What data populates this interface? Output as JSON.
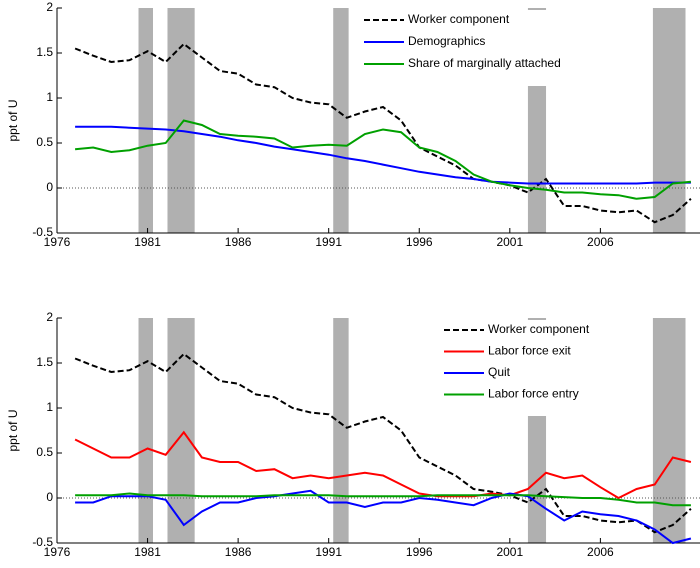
{
  "chart_data": [
    {
      "type": "line",
      "y_label": "ppt of U",
      "xlim": [
        1976,
        2011.5
      ],
      "xticks": [
        1976,
        1981,
        1986,
        1991,
        1996,
        2001,
        2006
      ],
      "ylim": [
        -0.5,
        2
      ],
      "yticks": [
        2,
        1.5,
        1,
        0.5,
        0,
        -0.5
      ],
      "zero_line": true,
      "legend": "upper center",
      "shaded_periods": [
        [
          1980.5,
          1981.3
        ],
        [
          1982.1,
          1983.6
        ],
        [
          1991.25,
          1992.1
        ],
        [
          2002.0,
          2003.0
        ],
        [
          2008.9,
          2010.7
        ]
      ],
      "x": [
        1977,
        1978,
        1979,
        1980,
        1981,
        1982,
        1983,
        1984,
        1985,
        1986,
        1987,
        1988,
        1989,
        1990,
        1991,
        1992,
        1993,
        1994,
        1995,
        1996,
        1997,
        1998,
        1999,
        2000,
        2001,
        2002,
        2003,
        2004,
        2005,
        2006,
        2007,
        2008,
        2009,
        2010,
        2011
      ],
      "series": [
        {
          "name": "Worker component",
          "color": "#000000",
          "style": "dashed",
          "values": [
            1.55,
            1.47,
            1.4,
            1.42,
            1.52,
            1.4,
            1.6,
            1.45,
            1.3,
            1.27,
            1.15,
            1.12,
            1.0,
            0.95,
            0.93,
            0.78,
            0.85,
            0.9,
            0.75,
            0.45,
            0.35,
            0.25,
            0.1,
            0.07,
            0.03,
            -0.05,
            0.1,
            -0.2,
            -0.2,
            -0.25,
            -0.27,
            -0.25,
            -0.38,
            -0.3,
            -0.12
          ]
        },
        {
          "name": "Demographics",
          "color": "#0000ff",
          "style": "solid",
          "values": [
            0.68,
            0.68,
            0.68,
            0.67,
            0.66,
            0.65,
            0.63,
            0.6,
            0.57,
            0.53,
            0.5,
            0.46,
            0.43,
            0.4,
            0.37,
            0.33,
            0.3,
            0.26,
            0.22,
            0.18,
            0.15,
            0.12,
            0.1,
            0.07,
            0.06,
            0.05,
            0.05,
            0.05,
            0.05,
            0.05,
            0.05,
            0.05,
            0.06,
            0.06,
            0.06
          ]
        },
        {
          "name": "Share of marginally attached",
          "color": "#00a000",
          "style": "solid",
          "values": [
            0.43,
            0.45,
            0.4,
            0.42,
            0.47,
            0.5,
            0.75,
            0.7,
            0.6,
            0.58,
            0.57,
            0.55,
            0.45,
            0.47,
            0.48,
            0.47,
            0.6,
            0.65,
            0.62,
            0.45,
            0.4,
            0.3,
            0.15,
            0.07,
            0.03,
            0.0,
            -0.02,
            -0.05,
            -0.05,
            -0.07,
            -0.08,
            -0.12,
            -0.1,
            0.05,
            0.07
          ]
        }
      ]
    },
    {
      "type": "line",
      "y_label": "ppt of U",
      "xlim": [
        1976,
        2011.5
      ],
      "xticks": [
        1976,
        1981,
        1986,
        1991,
        1996,
        2001,
        2006
      ],
      "ylim": [
        -0.5,
        2
      ],
      "yticks": [
        2,
        1.5,
        1,
        0.5,
        0,
        -0.5
      ],
      "zero_line": true,
      "legend": "upper right",
      "shaded_periods": [
        [
          1980.5,
          1981.3
        ],
        [
          1982.1,
          1983.6
        ],
        [
          1991.25,
          1992.1
        ],
        [
          2002.0,
          2003.0
        ],
        [
          2008.9,
          2010.7
        ]
      ],
      "x": [
        1977,
        1978,
        1979,
        1980,
        1981,
        1982,
        1983,
        1984,
        1985,
        1986,
        1987,
        1988,
        1989,
        1990,
        1991,
        1992,
        1993,
        1994,
        1995,
        1996,
        1997,
        1998,
        1999,
        2000,
        2001,
        2002,
        2003,
        2004,
        2005,
        2006,
        2007,
        2008,
        2009,
        2010,
        2011
      ],
      "series": [
        {
          "name": "Worker component",
          "color": "#000000",
          "style": "dashed",
          "values": [
            1.55,
            1.47,
            1.4,
            1.42,
            1.52,
            1.4,
            1.6,
            1.45,
            1.3,
            1.27,
            1.15,
            1.12,
            1.0,
            0.95,
            0.93,
            0.78,
            0.85,
            0.9,
            0.75,
            0.45,
            0.35,
            0.25,
            0.1,
            0.07,
            0.03,
            -0.05,
            0.1,
            -0.2,
            -0.2,
            -0.25,
            -0.27,
            -0.25,
            -0.38,
            -0.3,
            -0.12
          ]
        },
        {
          "name": "Labor force exit",
          "color": "#ff0000",
          "style": "solid",
          "values": [
            0.65,
            0.55,
            0.45,
            0.45,
            0.55,
            0.48,
            0.73,
            0.45,
            0.4,
            0.4,
            0.3,
            0.32,
            0.22,
            0.25,
            0.22,
            0.25,
            0.28,
            0.25,
            0.15,
            0.05,
            0.02,
            0.02,
            0.02,
            0.05,
            0.03,
            0.1,
            0.28,
            0.22,
            0.25,
            0.12,
            0.0,
            0.1,
            0.15,
            0.45,
            0.4
          ]
        },
        {
          "name": "Quit",
          "color": "#0000ff",
          "style": "solid",
          "values": [
            -0.05,
            -0.05,
            0.02,
            0.02,
            0.02,
            -0.02,
            -0.3,
            -0.15,
            -0.05,
            -0.05,
            0.0,
            0.02,
            0.05,
            0.08,
            -0.05,
            -0.05,
            -0.1,
            -0.05,
            -0.05,
            0.0,
            -0.02,
            -0.05,
            -0.08,
            0.0,
            0.05,
            0.02,
            -0.12,
            -0.25,
            -0.15,
            -0.18,
            -0.2,
            -0.25,
            -0.35,
            -0.5,
            -0.45
          ]
        },
        {
          "name": "Labor force entry",
          "color": "#00a000",
          "style": "solid",
          "values": [
            0.03,
            0.03,
            0.03,
            0.05,
            0.03,
            0.03,
            0.03,
            0.02,
            0.02,
            0.02,
            0.02,
            0.03,
            0.03,
            0.03,
            0.03,
            0.02,
            0.02,
            0.02,
            0.02,
            0.02,
            0.03,
            0.03,
            0.03,
            0.03,
            0.03,
            0.03,
            0.02,
            0.01,
            0.0,
            0.0,
            -0.02,
            -0.05,
            -0.05,
            -0.08,
            -0.08
          ]
        }
      ]
    }
  ]
}
